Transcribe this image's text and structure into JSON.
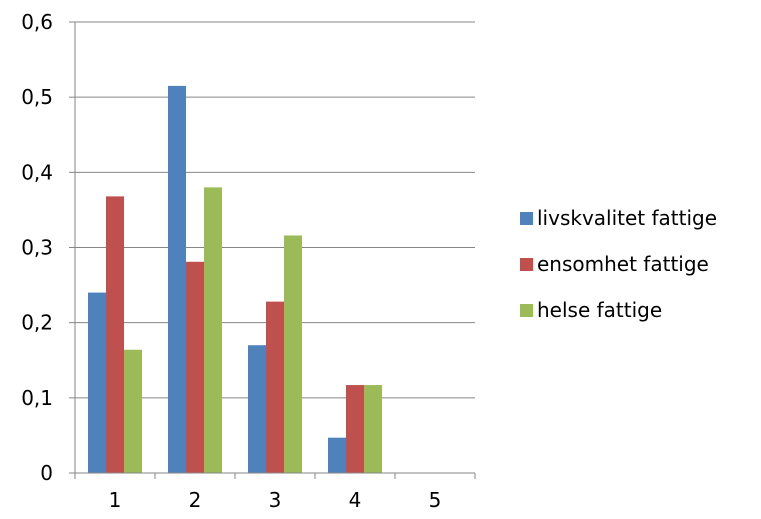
{
  "chart_data": {
    "type": "bar",
    "categories": [
      "1",
      "2",
      "3",
      "4",
      "5"
    ],
    "series": [
      {
        "name": "livskvalitet fattige",
        "color": "#4f81bd",
        "values": [
          0.24,
          0.515,
          0.17,
          0.047,
          0
        ]
      },
      {
        "name": "ensomhet fattige",
        "color": "#c0504d",
        "values": [
          0.368,
          0.281,
          0.228,
          0.117,
          0
        ]
      },
      {
        "name": "helse fattige",
        "color": "#9bbb59",
        "values": [
          0.164,
          0.38,
          0.316,
          0.117,
          0
        ]
      }
    ],
    "ylim": [
      0,
      0.6
    ],
    "yticks": [
      0,
      0.1,
      0.2,
      0.3,
      0.4,
      0.5,
      0.6
    ],
    "ytick_labels": [
      "0",
      "0,1",
      "0,2",
      "0,3",
      "0,4",
      "0,5",
      "0,6"
    ],
    "grid": true,
    "legend_position": "right",
    "title": "",
    "xlabel": "",
    "ylabel": ""
  }
}
